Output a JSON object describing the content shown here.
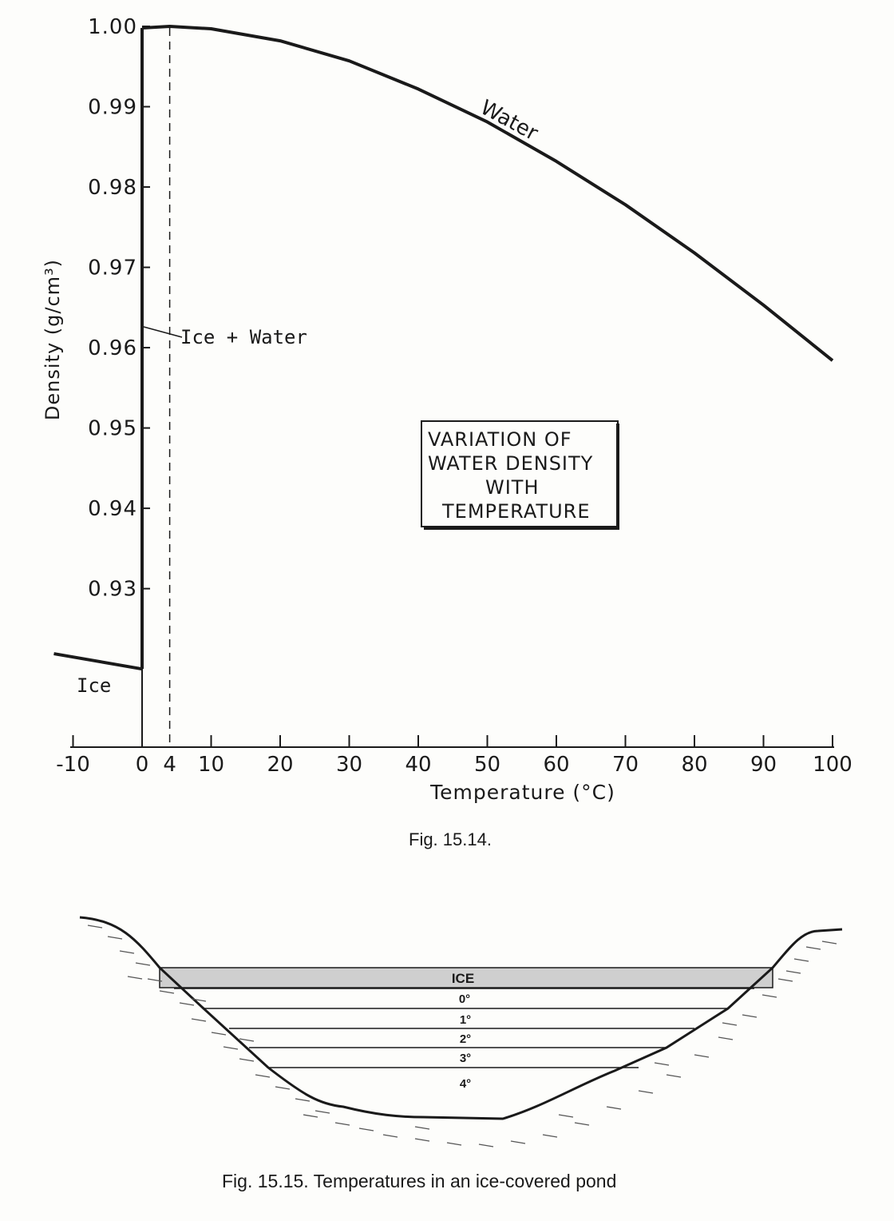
{
  "chart_data": {
    "type": "line",
    "xlabel": "Temperature  (°C)",
    "ylabel": "Density  (g/cm³)",
    "xlim": [
      -10,
      100
    ],
    "ylim": [
      0.92,
      1.0
    ],
    "x_ticks": [
      "-10",
      "0",
      "4",
      "10",
      "20",
      "30",
      "40",
      "50",
      "60",
      "70",
      "80",
      "90",
      "100"
    ],
    "x_tick_values": [
      -10,
      0,
      4,
      10,
      20,
      30,
      40,
      50,
      60,
      70,
      80,
      90,
      100
    ],
    "y_ticks": [
      "1.00",
      "0.99",
      "0.98",
      "0.97",
      "0.96",
      "0.95",
      "0.94",
      "0.93"
    ],
    "y_tick_values": [
      1.0,
      0.99,
      0.98,
      0.97,
      0.96,
      0.95,
      0.94,
      0.93
    ],
    "series": [
      {
        "name": "Water",
        "x": [
          0,
          4,
          10,
          20,
          30,
          40,
          50,
          60,
          70,
          80,
          90,
          100
        ],
        "y": [
          0.9998,
          1.0,
          0.9997,
          0.9982,
          0.9957,
          0.9922,
          0.9881,
          0.9832,
          0.9778,
          0.9718,
          0.9653,
          0.9584
        ]
      },
      {
        "name": "Ice",
        "x": [
          -10,
          0
        ],
        "y": [
          0.9219,
          0.92
        ]
      }
    ],
    "transition": {
      "x": 0,
      "y_from": 0.92,
      "y_to": 0.9998
    },
    "reference_line_x": 4,
    "annotations": {
      "ice_water": "Ice + Water",
      "water": "Water",
      "ice": "Ice"
    },
    "title_box": [
      "VARIATION  OF",
      "WATER DENSITY",
      "WITH",
      "TEMPERATURE"
    ]
  },
  "caption1": "Fig. 15.14.",
  "pond": {
    "layers": [
      "ICE",
      "0°",
      "1°",
      "2°",
      "3°",
      "4°"
    ],
    "caption": "Fig. 15.15. Temperatures in an ice-covered pond"
  }
}
